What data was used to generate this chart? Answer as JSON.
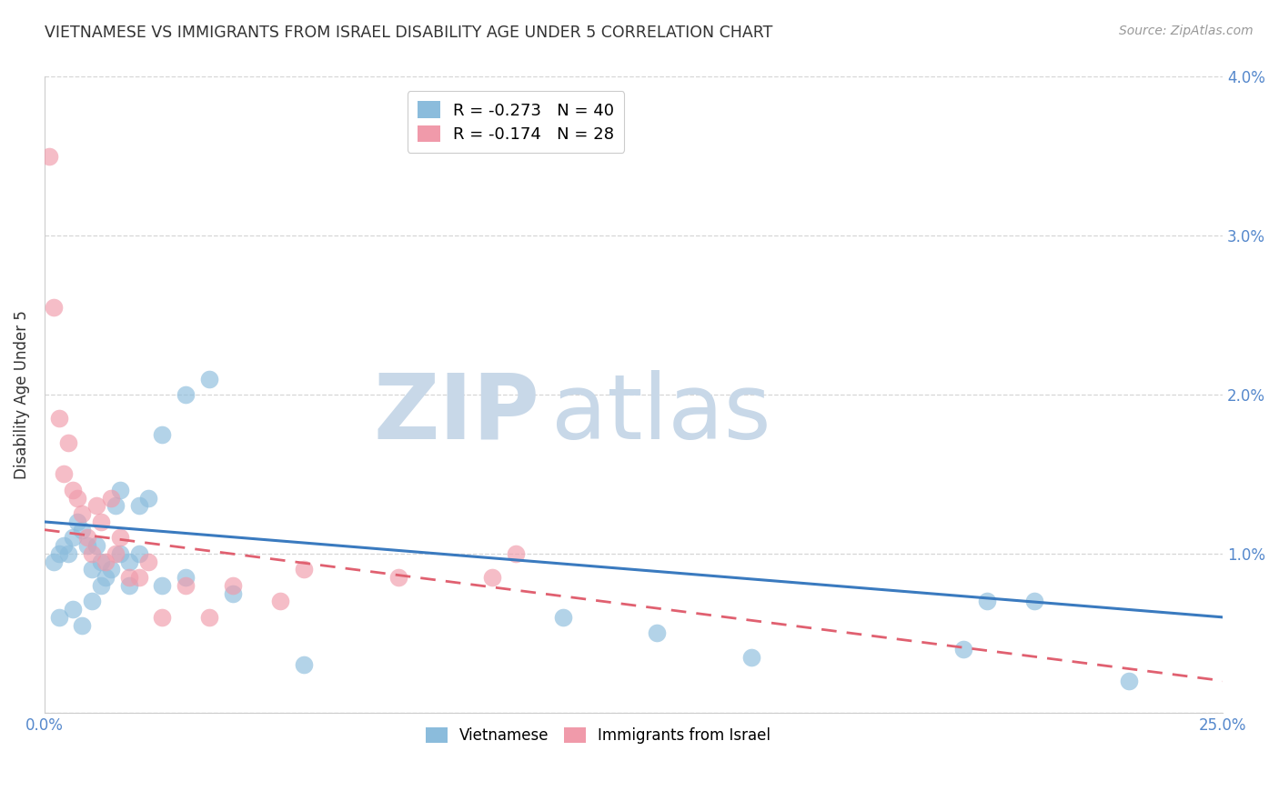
{
  "title": "VIETNAMESE VS IMMIGRANTS FROM ISRAEL DISABILITY AGE UNDER 5 CORRELATION CHART",
  "source": "Source: ZipAtlas.com",
  "ylabel": "Disability Age Under 5",
  "xlim": [
    0.0,
    0.25
  ],
  "ylim": [
    0.0,
    0.04
  ],
  "xtick_positions": [
    0.0,
    0.05,
    0.1,
    0.15,
    0.2,
    0.25
  ],
  "xtick_labels": [
    "0.0%",
    "",
    "",
    "",
    "",
    "25.0%"
  ],
  "ytick_positions": [
    0.0,
    0.01,
    0.02,
    0.03,
    0.04
  ],
  "ytick_labels_right": [
    "",
    "1.0%",
    "2.0%",
    "3.0%",
    "4.0%"
  ],
  "viet_color": "#8bbcdc",
  "israel_color": "#f09aaa",
  "viet_line_color": "#3a7abf",
  "israel_line_color": "#e06070",
  "background_color": "#ffffff",
  "grid_color": "#cccccc",
  "title_color": "#333333",
  "label_color": "#5588cc",
  "watermark_zip_color": "#c8d8e8",
  "watermark_atlas_color": "#c8d8e8",
  "r_viet": -0.273,
  "n_viet": 40,
  "r_israel": -0.174,
  "n_israel": 28,
  "viet_x": [
    0.002,
    0.003,
    0.004,
    0.005,
    0.006,
    0.007,
    0.008,
    0.009,
    0.01,
    0.011,
    0.012,
    0.013,
    0.015,
    0.016,
    0.018,
    0.02,
    0.022,
    0.025,
    0.03,
    0.035,
    0.003,
    0.006,
    0.008,
    0.01,
    0.012,
    0.014,
    0.016,
    0.018,
    0.02,
    0.025,
    0.03,
    0.04,
    0.055,
    0.11,
    0.13,
    0.15,
    0.195,
    0.2,
    0.21,
    0.23
  ],
  "viet_y": [
    0.0095,
    0.01,
    0.0105,
    0.01,
    0.011,
    0.012,
    0.0115,
    0.0105,
    0.009,
    0.0105,
    0.0095,
    0.0085,
    0.013,
    0.014,
    0.008,
    0.013,
    0.0135,
    0.0175,
    0.02,
    0.021,
    0.006,
    0.0065,
    0.0055,
    0.007,
    0.008,
    0.009,
    0.01,
    0.0095,
    0.01,
    0.008,
    0.0085,
    0.0075,
    0.003,
    0.006,
    0.005,
    0.0035,
    0.004,
    0.007,
    0.007,
    0.002
  ],
  "israel_x": [
    0.001,
    0.002,
    0.003,
    0.004,
    0.005,
    0.006,
    0.007,
    0.008,
    0.009,
    0.01,
    0.011,
    0.012,
    0.013,
    0.014,
    0.015,
    0.016,
    0.018,
    0.02,
    0.022,
    0.025,
    0.03,
    0.035,
    0.04,
    0.05,
    0.055,
    0.075,
    0.095,
    0.1
  ],
  "israel_y": [
    0.035,
    0.0255,
    0.0185,
    0.015,
    0.017,
    0.014,
    0.0135,
    0.0125,
    0.011,
    0.01,
    0.013,
    0.012,
    0.0095,
    0.0135,
    0.01,
    0.011,
    0.0085,
    0.0085,
    0.0095,
    0.006,
    0.008,
    0.006,
    0.008,
    0.007,
    0.009,
    0.0085,
    0.0085,
    0.01
  ]
}
